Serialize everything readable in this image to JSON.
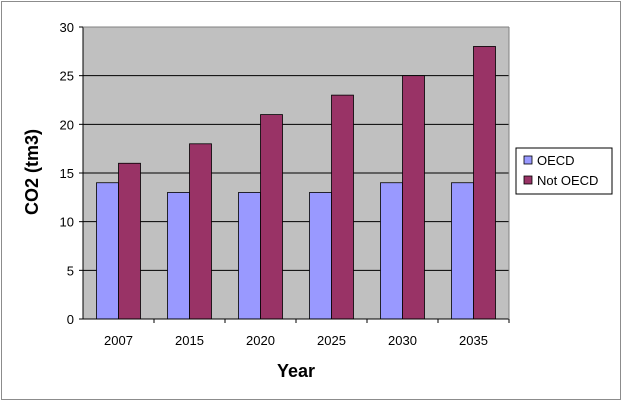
{
  "chart_data": {
    "type": "bar",
    "title": "",
    "xlabel": "Year",
    "ylabel": "CO2 (tm3)",
    "categories": [
      "2007",
      "2015",
      "2020",
      "2025",
      "2030",
      "2035"
    ],
    "series": [
      {
        "name": "OECD",
        "values": [
          14,
          13,
          13,
          13,
          14,
          14
        ],
        "color": "#9999ff"
      },
      {
        "name": "Not OECD",
        "values": [
          16,
          18,
          21,
          23,
          25,
          28
        ],
        "color": "#993366"
      }
    ],
    "ylim": [
      0,
      30
    ],
    "yticks": [
      "0",
      "5",
      "10",
      "15",
      "20",
      "25",
      "30"
    ],
    "grid": true,
    "legend_position": "right",
    "plot_background": "#c0c0c0"
  }
}
